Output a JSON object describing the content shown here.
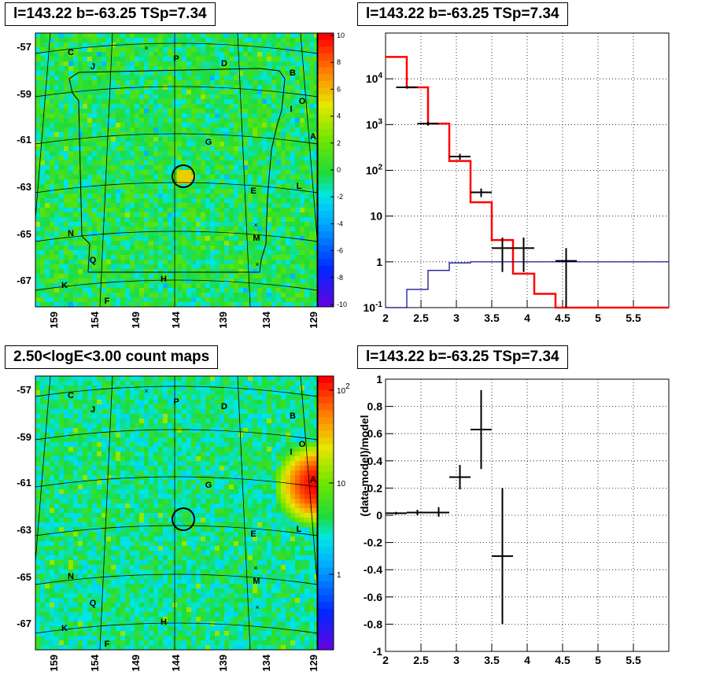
{
  "panels": {
    "tl": {
      "title": "l=143.22 b=-63.25 TSp=7.34"
    },
    "tr": {
      "title": "l=143.22 b=-63.25 TSp=7.34"
    },
    "bl": {
      "title": "2.50<logE<3.00 count maps"
    },
    "br": {
      "title": "l=143.22 b=-63.25 TSp=7.34"
    }
  },
  "colors": {
    "model": "#ff0000",
    "background_model": "#00008b",
    "data": "#000000",
    "map_green": "#33dd33",
    "source_marker": "#000000"
  },
  "chart_data": [
    {
      "id": "tl",
      "type": "heatmap",
      "title": "l=143.22 b=-63.25 TSp=7.34",
      "y_ticks": [
        "-57",
        "-59",
        "-61",
        "-63",
        "-65",
        "-67"
      ],
      "x_ticks": [
        "159",
        "154",
        "149",
        "144",
        "139",
        "134",
        "129"
      ],
      "colorbar_ticks": [
        "10",
        "8",
        "6",
        "4",
        "2",
        "0",
        "-2",
        "-4",
        "-6",
        "-8",
        "-10"
      ],
      "colorbar_range": [
        -10,
        10
      ],
      "source_labels": [
        "C",
        "J",
        "P",
        "D",
        "B",
        "O",
        "I",
        "A",
        "G",
        "E",
        "L",
        "N",
        "M",
        "Q",
        "K",
        "H",
        "F"
      ],
      "marker": "circle"
    },
    {
      "id": "tr",
      "type": "line",
      "title": "l=143.22 b=-63.25 TSp=7.34",
      "xlim": [
        2.0,
        6.0
      ],
      "ylim": [
        0.1,
        100000
      ],
      "yscale": "log",
      "x_ticks": [
        "2",
        "2.5",
        "3",
        "3.5",
        "4",
        "4.5",
        "5",
        "5.5"
      ],
      "y_ticks": [
        "10^-1",
        "1",
        "10",
        "10^2",
        "10^3",
        "10^4"
      ],
      "grid": true,
      "series": [
        {
          "style": "step",
          "color": "#ff0000",
          "bin_edges": [
            2.0,
            2.3,
            2.6,
            2.9,
            3.2,
            3.5,
            3.8,
            4.1,
            4.4,
            6.0
          ],
          "values": [
            30000,
            6500,
            1050,
            160,
            20,
            3,
            0.55,
            0.2,
            0.1
          ]
        },
        {
          "style": "step",
          "color": "#00008b",
          "bin_edges": [
            2.0,
            2.3,
            2.6,
            2.9,
            3.2,
            3.5,
            3.8,
            4.1,
            4.4,
            6.0
          ],
          "values": [
            0.1,
            0.25,
            0.65,
            0.95,
            1.0,
            1.0,
            1.0,
            1.0,
            1.0
          ]
        },
        {
          "style": "errorbar",
          "color": "#000000",
          "x": [
            2.3,
            2.6,
            3.05,
            3.35,
            3.65,
            3.95,
            4.55
          ],
          "xerr": [
            0.15,
            0.15,
            0.15,
            0.15,
            0.15,
            0.15,
            0.15
          ],
          "y": [
            6500,
            1050,
            200,
            33,
            2.0,
            2.0,
            1.05
          ],
          "ylo": [
            6100,
            950,
            170,
            26,
            0.6,
            0.6,
            0.1
          ],
          "yhi": [
            6900,
            1150,
            230,
            40,
            3.4,
            3.4,
            2.0
          ]
        }
      ]
    },
    {
      "id": "bl",
      "type": "heatmap",
      "title": "2.50<logE<3.00 count maps",
      "y_ticks": [
        "-57",
        "-59",
        "-61",
        "-63",
        "-65",
        "-67"
      ],
      "x_ticks": [
        "159",
        "154",
        "149",
        "144",
        "139",
        "134",
        "129"
      ],
      "colorbar_ticks": [
        "10^2",
        "10",
        "1"
      ],
      "colorbar_scale": "log",
      "source_labels": [
        "C",
        "J",
        "P",
        "D",
        "B",
        "O",
        "I",
        "A",
        "G",
        "E",
        "L",
        "N",
        "M",
        "Q",
        "K",
        "H",
        "F"
      ],
      "marker": "circle"
    },
    {
      "id": "br",
      "type": "scatter",
      "title": "l=143.22 b=-63.25 TSp=7.34",
      "ylabel": "(data-model)/model",
      "xlim": [
        2.0,
        6.0
      ],
      "ylim": [
        -1.0,
        1.0
      ],
      "x_ticks": [
        "2",
        "2.5",
        "3",
        "3.5",
        "4",
        "4.5",
        "5",
        "5.5"
      ],
      "y_ticks": [
        "1",
        "0.8",
        "0.6",
        "0.4",
        "0.2",
        "0",
        "-0.2",
        "-0.4",
        "-0.6",
        "-0.8",
        "-1"
      ],
      "grid": true,
      "points": [
        {
          "x": 2.15,
          "xerr": 0.15,
          "y": 0.015,
          "ylo": 0.005,
          "yhi": 0.025
        },
        {
          "x": 2.45,
          "xerr": 0.15,
          "y": 0.02,
          "ylo": 0.0,
          "yhi": 0.04
        },
        {
          "x": 2.75,
          "xerr": 0.15,
          "y": 0.02,
          "ylo": -0.01,
          "yhi": 0.06
        },
        {
          "x": 3.05,
          "xerr": 0.15,
          "y": 0.28,
          "ylo": 0.19,
          "yhi": 0.37
        },
        {
          "x": 3.35,
          "xerr": 0.15,
          "y": 0.63,
          "ylo": 0.34,
          "yhi": 0.92
        },
        {
          "x": 3.65,
          "xerr": 0.15,
          "y": -0.3,
          "ylo": -0.8,
          "yhi": 0.2
        }
      ]
    }
  ]
}
